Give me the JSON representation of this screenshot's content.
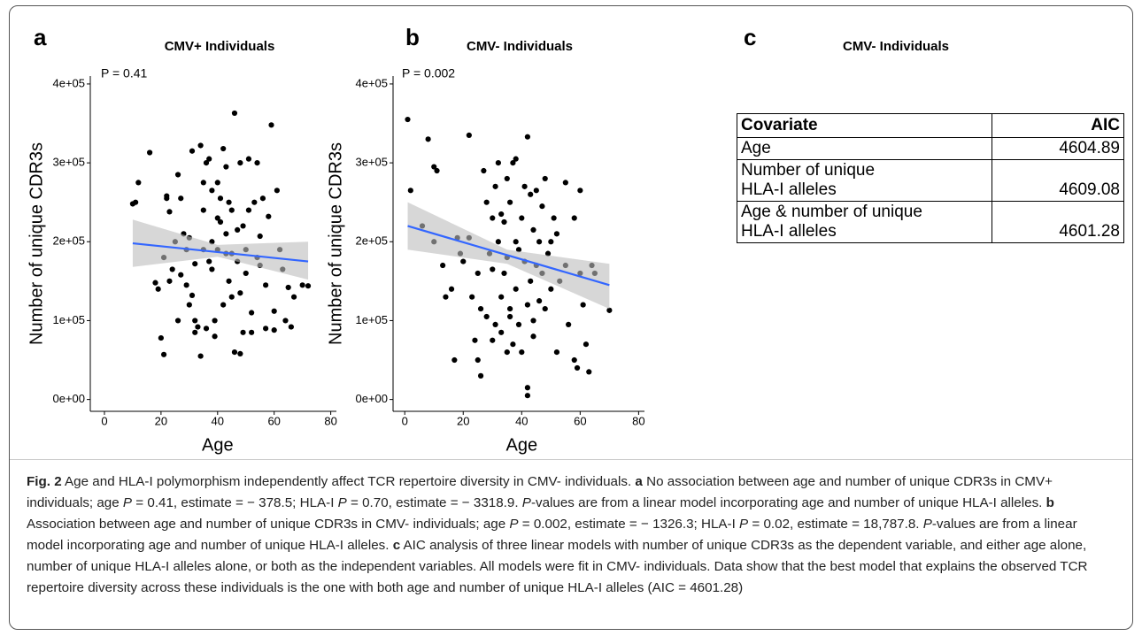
{
  "chart_data": [
    {
      "type": "scatter",
      "label": "a",
      "title": "CMV+ Individuals",
      "annotation": "P = 0.41",
      "x_label": "Age",
      "y_label": "Number of unique CDR3s",
      "color": "#000000",
      "x": [
        10,
        12,
        16,
        11,
        20,
        21,
        21,
        22,
        22,
        23,
        23,
        18,
        19,
        25,
        26,
        26,
        27,
        27,
        28,
        29,
        30,
        30,
        31,
        32,
        32,
        32,
        33,
        34,
        34,
        35,
        35,
        35,
        36,
        37,
        37,
        38,
        38,
        38,
        39,
        39,
        40,
        40,
        40,
        41,
        41,
        42,
        42,
        43,
        43,
        43,
        44,
        44,
        45,
        45,
        45,
        46,
        46,
        47,
        47,
        48,
        48,
        48,
        49,
        49,
        50,
        50,
        51,
        51,
        52,
        52,
        53,
        54,
        54,
        55,
        56,
        57,
        57,
        58,
        59,
        60,
        60,
        61,
        62,
        63,
        64,
        65,
        66,
        67,
        70,
        72,
        29,
        31,
        24,
        36,
        55
      ],
      "values": [
        248000,
        275000,
        313000,
        250000,
        78000,
        57000,
        180000,
        255000,
        258000,
        238000,
        150000,
        148000,
        140000,
        200000,
        285000,
        100000,
        158000,
        255000,
        210000,
        190000,
        120000,
        205000,
        132000,
        100000,
        85000,
        172000,
        92000,
        55000,
        322000,
        275000,
        240000,
        190000,
        300000,
        305000,
        175000,
        265000,
        200000,
        165000,
        100000,
        80000,
        275000,
        230000,
        190000,
        255000,
        225000,
        318000,
        120000,
        295000,
        210000,
        185000,
        250000,
        150000,
        240000,
        130000,
        185000,
        363000,
        60000,
        215000,
        175000,
        58000,
        300000,
        135000,
        220000,
        85000,
        190000,
        160000,
        305000,
        240000,
        110000,
        85000,
        250000,
        300000,
        180000,
        170000,
        255000,
        145000,
        90000,
        232000,
        348000,
        112000,
        88000,
        265000,
        190000,
        165000,
        100000,
        142000,
        92000,
        130000,
        145000,
        144000,
        145000,
        315000,
        165000,
        90000,
        207000
      ],
      "fit": {
        "x": [
          10,
          72
        ],
        "values": [
          198000,
          175000
        ],
        "color": "#3366ff"
      },
      "band": {
        "x": [
          10,
          40,
          72
        ],
        "lower": [
          168000,
          181000,
          152000
        ],
        "upper": [
          228000,
          196000,
          200000
        ],
        "color": "#bdbdbd"
      },
      "xlim": [
        -5,
        82
      ],
      "xticks": [
        0,
        20,
        40,
        60,
        80
      ],
      "ylim": [
        -15000,
        410000
      ],
      "yticks": [
        {
          "value": 0,
          "label": "0e+00"
        },
        {
          "value": 100000,
          "label": "1e+05"
        },
        {
          "value": 200000,
          "label": "2e+05"
        },
        {
          "value": 300000,
          "label": "3e+05"
        },
        {
          "value": 400000,
          "label": "4e+05"
        }
      ]
    },
    {
      "type": "scatter",
      "label": "b",
      "title": "CMV- Individuals",
      "annotation": "P = 0.002",
      "x_label": "Age",
      "y_label": "Number of unique CDR3s",
      "color": "#000000",
      "x": [
        1,
        2,
        6,
        8,
        10,
        11,
        10,
        13,
        14,
        16,
        17,
        18,
        19,
        20,
        22,
        22,
        23,
        24,
        25,
        25,
        26,
        26,
        27,
        28,
        28,
        29,
        30,
        30,
        30,
        31,
        31,
        32,
        32,
        33,
        33,
        34,
        34,
        35,
        35,
        35,
        36,
        36,
        37,
        37,
        38,
        38,
        38,
        39,
        39,
        40,
        40,
        41,
        41,
        42,
        42,
        42,
        42,
        43,
        43,
        44,
        44,
        45,
        45,
        46,
        46,
        47,
        47,
        48,
        48,
        49,
        50,
        50,
        51,
        52,
        52,
        53,
        55,
        55,
        56,
        58,
        58,
        59,
        60,
        60,
        61,
        62,
        63,
        64,
        65,
        70,
        36,
        44,
        33
      ],
      "values": [
        355000,
        265000,
        220000,
        330000,
        295000,
        290000,
        200000,
        170000,
        130000,
        140000,
        50000,
        205000,
        185000,
        175000,
        335000,
        205000,
        130000,
        75000,
        50000,
        160000,
        30000,
        115000,
        290000,
        250000,
        105000,
        185000,
        230000,
        75000,
        165000,
        270000,
        95000,
        300000,
        200000,
        130000,
        85000,
        225000,
        160000,
        280000,
        60000,
        180000,
        250000,
        115000,
        300000,
        70000,
        305000,
        140000,
        200000,
        190000,
        95000,
        230000,
        60000,
        270000,
        175000,
        333000,
        120000,
        15000,
        5000,
        260000,
        150000,
        215000,
        80000,
        265000,
        170000,
        200000,
        125000,
        245000,
        160000,
        280000,
        115000,
        185000,
        200000,
        140000,
        230000,
        210000,
        60000,
        150000,
        275000,
        170000,
        95000,
        230000,
        50000,
        40000,
        265000,
        160000,
        120000,
        70000,
        35000,
        170000,
        160000,
        113000,
        105000,
        100000,
        235000
      ],
      "fit": {
        "x": [
          1,
          70
        ],
        "values": [
          220000,
          145000
        ],
        "color": "#3366ff"
      },
      "band": {
        "x": [
          1,
          35,
          70
        ],
        "lower": [
          190000,
          172000,
          115000
        ],
        "upper": [
          250000,
          190000,
          172000
        ],
        "color": "#bdbdbd"
      },
      "xlim": [
        -4,
        82
      ],
      "xticks": [
        0,
        20,
        40,
        60,
        80
      ],
      "ylim": [
        -15000,
        410000
      ],
      "yticks": [
        {
          "value": 0,
          "label": "0e+00"
        },
        {
          "value": 100000,
          "label": "1e+05"
        },
        {
          "value": 200000,
          "label": "2e+05"
        },
        {
          "value": 300000,
          "label": "3e+05"
        },
        {
          "value": 400000,
          "label": "4e+05"
        }
      ]
    }
  ],
  "panel_c": {
    "label": "c",
    "title": "CMV- Individuals",
    "table": {
      "header": [
        "Covariate",
        "AIC"
      ],
      "rows": [
        [
          [
            "Age"
          ],
          4604.89
        ],
        [
          [
            "Number of unique",
            "HLA-I alleles"
          ],
          4609.08
        ],
        [
          [
            "Age & number of unique",
            "HLA-I alleles"
          ],
          4601.28
        ]
      ]
    }
  },
  "caption": {
    "runs": [
      "Fig. 2",
      " Age and HLA-I polymorphism independently affect TCR repertoire diversity in CMV- individuals. ",
      "a",
      " No association between age and number of unique CDR3s in CMV+ individuals; age ",
      "P",
      " = 0.41, estimate = − 378.5; HLA-I ",
      "P",
      " = 0.70, estimate = − 3318.9. ",
      "P",
      "-values are from a linear model incorporating age and number of unique HLA-I alleles. ",
      "b",
      " Association between age and number of unique CDR3s in CMV- individuals; age ",
      "P",
      " = 0.002, estimate = − 1326.3; HLA-I ",
      "P",
      " = 0.02, estimate = 18,787.8. ",
      "P",
      "-values are from a linear model incorporating age and number of unique HLA-I alleles. ",
      "c",
      " AIC analysis of three linear models with number of unique CDR3s as the dependent variable, and either age alone, number of unique HLA-I alleles alone, or both as the independent variables. All models were fit in CMV- individuals. Data show that the best model that explains the observed TCR repertoire diversity across these individuals is the one with both age and number of unique HLA-I alleles (AIC = 4601.28)"
    ]
  }
}
